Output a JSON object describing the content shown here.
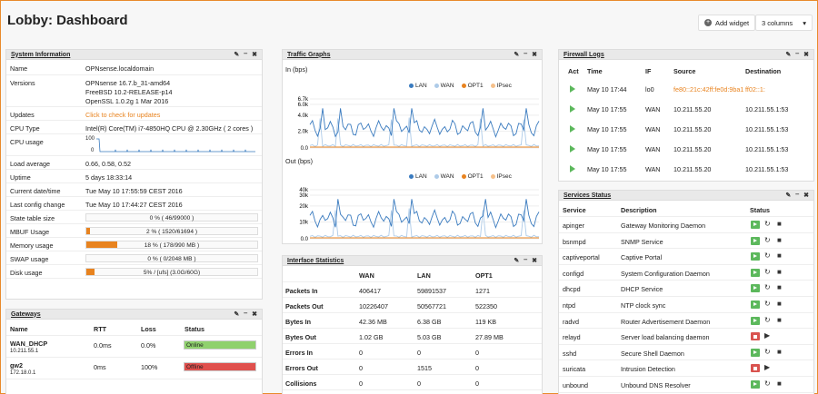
{
  "page": {
    "title": "Lobby: Dashboard",
    "add_widget": "Add widget",
    "columns": "3 columns"
  },
  "sysinfo": {
    "title": "System Information",
    "rows": [
      {
        "label": "Name",
        "value": "OPNsense.localdomain"
      },
      {
        "label": "Versions",
        "v1": "OPNsense 16.7.b_31-amd64",
        "v2": "FreeBSD 10.2-RELEASE-p14",
        "v3": "OpenSSL 1.0.2g 1 Mar 2016"
      },
      {
        "label": "Updates",
        "value": "Click to check for updates"
      },
      {
        "label": "CPU Type",
        "value": "Intel(R) Core(TM) i7-4850HQ CPU @ 2.30GHz ( 2 cores )"
      },
      {
        "label": "CPU usage",
        "v100": "100",
        "v0": "0"
      },
      {
        "label": "Load average",
        "value": "0.66, 0.58, 0.52"
      },
      {
        "label": "Uptime",
        "value": "5 days 18:33:14"
      },
      {
        "label": "Current date/time",
        "value": "Tue May 10 17:55:59 CEST 2016"
      },
      {
        "label": "Last config change",
        "value": "Tue May 10 17:44:27 CEST 2016"
      },
      {
        "label": "State table size",
        "value": "0 % ( 46/99000 )",
        "pct": 0
      },
      {
        "label": "MBUF Usage",
        "value": "2 % ( 1520/61694 )",
        "pct": 2
      },
      {
        "label": "Memory usage",
        "value": "18 % ( 178/990 MB )",
        "pct": 18
      },
      {
        "label": "SWAP usage",
        "value": "0 % ( 0/2048 MB )",
        "pct": 0
      },
      {
        "label": "Disk usage",
        "value": "5% / [ufs] (3.0G/60G)",
        "pct": 5
      }
    ]
  },
  "gateways": {
    "title": "Gateways",
    "headers": [
      "Name",
      "RTT",
      "Loss",
      "Status"
    ],
    "rows": [
      {
        "name": "WAN_DHCP",
        "ip": "10.211.55.1",
        "rtt": "0.0ms",
        "loss": "0.0%",
        "status": "Online",
        "color": "#8fd16d"
      },
      {
        "name": "gw2",
        "ip": "172.18.0.1",
        "rtt": "0ms",
        "loss": "100%",
        "status": "Offline",
        "color": "#e0504d"
      }
    ]
  },
  "traffic": {
    "title": "Traffic Graphs",
    "in_label": "In (bps)",
    "out_label": "Out (bps)",
    "legend": [
      {
        "name": "LAN",
        "color": "#3a7bbf"
      },
      {
        "name": "WAN",
        "color": "#aecbe8"
      },
      {
        "name": "OPT1",
        "color": "#e8831f"
      },
      {
        "name": "IPsec",
        "color": "#f6c08a"
      }
    ],
    "in_ticks": [
      "6.7k",
      "6.0k",
      "4.0k",
      "2.0k",
      "0.0"
    ],
    "out_ticks": [
      "40k",
      "30k",
      "20k",
      "10k",
      "0.0"
    ]
  },
  "ifstats": {
    "title": "Interface Statistics",
    "headers": [
      "WAN",
      "LAN",
      "OPT1"
    ],
    "rows": [
      {
        "label": "Packets In",
        "c": [
          "406417",
          "59891537",
          "1271"
        ]
      },
      {
        "label": "Packets Out",
        "c": [
          "10226407",
          "50567721",
          "522350"
        ]
      },
      {
        "label": "Bytes In",
        "c": [
          "42.36 MB",
          "6.38 GB",
          "119 KB"
        ]
      },
      {
        "label": "Bytes Out",
        "c": [
          "1.02 GB",
          "5.03 GB",
          "27.89 MB"
        ]
      },
      {
        "label": "Errors In",
        "c": [
          "0",
          "0",
          "0"
        ]
      },
      {
        "label": "Errors Out",
        "c": [
          "0",
          "1515",
          "0"
        ]
      },
      {
        "label": "Collisions",
        "c": [
          "0",
          "0",
          "0"
        ]
      }
    ]
  },
  "fwlogs": {
    "title": "Firewall Logs",
    "headers": [
      "Act",
      "Time",
      "IF",
      "Source",
      "Destination"
    ],
    "rows": [
      {
        "time": "May 10 17:44",
        "if": "lo0",
        "src": "fe80::21c:42ff:fe0d:9ba1",
        "dst": "ff02::1:",
        "link": true
      },
      {
        "time": "May 10 17:55",
        "if": "WAN",
        "src": "10.211.55.20",
        "dst": "10.211.55.1:53",
        "link": false
      },
      {
        "time": "May 10 17:55",
        "if": "WAN",
        "src": "10.211.55.20",
        "dst": "10.211.55.1:53",
        "link": false
      },
      {
        "time": "May 10 17:55",
        "if": "WAN",
        "src": "10.211.55.20",
        "dst": "10.211.55.1:53",
        "link": false
      },
      {
        "time": "May 10 17:55",
        "if": "WAN",
        "src": "10.211.55.20",
        "dst": "10.211.55.1:53",
        "link": false
      }
    ]
  },
  "services": {
    "title": "Services Status",
    "headers": [
      "Service",
      "Description",
      "Status"
    ],
    "rows": [
      {
        "name": "apinger",
        "desc": "Gateway Monitoring Daemon",
        "running": true
      },
      {
        "name": "bsnmpd",
        "desc": "SNMP Service",
        "running": true
      },
      {
        "name": "captiveportal",
        "desc": "Captive Portal",
        "running": true
      },
      {
        "name": "configd",
        "desc": "System Configuration Daemon",
        "running": true
      },
      {
        "name": "dhcpd",
        "desc": "DHCP Service",
        "running": true
      },
      {
        "name": "ntpd",
        "desc": "NTP clock sync",
        "running": true
      },
      {
        "name": "radvd",
        "desc": "Router Advertisement Daemon",
        "running": true
      },
      {
        "name": "relayd",
        "desc": "Server load balancing daemon",
        "running": false
      },
      {
        "name": "sshd",
        "desc": "Secure Shell Daemon",
        "running": true
      },
      {
        "name": "suricata",
        "desc": "Intrusion Detection",
        "running": false
      },
      {
        "name": "unbound",
        "desc": "Unbound DNS Resolver",
        "running": true
      }
    ]
  }
}
